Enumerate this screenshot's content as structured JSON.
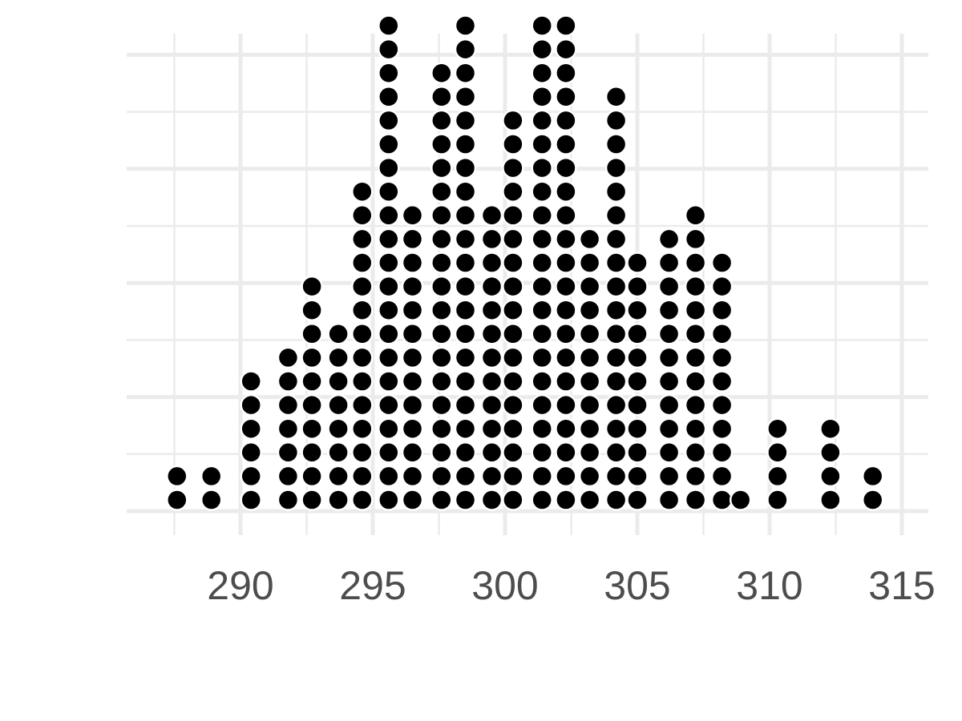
{
  "chart_data": {
    "type": "dotplot",
    "title": "",
    "xlabel": "",
    "ylabel": "",
    "x_ticks": [
      "290",
      "295",
      "300",
      "305",
      "310",
      "315"
    ],
    "x_tick_values": [
      290,
      295,
      300,
      305,
      310,
      315
    ],
    "xlim": [
      287.3,
      316.0
    ],
    "y_axis_labels_shown": false,
    "grid": true,
    "dot_color": "#000000",
    "bins": [
      {
        "x": 287.6,
        "count": 2
      },
      {
        "x": 288.9,
        "count": 2
      },
      {
        "x": 290.4,
        "count": 6
      },
      {
        "x": 291.8,
        "count": 7
      },
      {
        "x": 292.7,
        "count": 10
      },
      {
        "x": 293.7,
        "count": 8
      },
      {
        "x": 294.6,
        "count": 14
      },
      {
        "x": 295.6,
        "count": 21
      },
      {
        "x": 296.5,
        "count": 13
      },
      {
        "x": 297.6,
        "count": 19
      },
      {
        "x": 298.5,
        "count": 21
      },
      {
        "x": 299.5,
        "count": 13
      },
      {
        "x": 300.3,
        "count": 17
      },
      {
        "x": 301.4,
        "count": 21
      },
      {
        "x": 302.3,
        "count": 21
      },
      {
        "x": 303.2,
        "count": 12
      },
      {
        "x": 304.2,
        "count": 18
      },
      {
        "x": 305.0,
        "count": 11
      },
      {
        "x": 306.2,
        "count": 12
      },
      {
        "x": 307.2,
        "count": 13
      },
      {
        "x": 308.2,
        "count": 11
      },
      {
        "x": 308.9,
        "count": 1
      },
      {
        "x": 310.3,
        "count": 4
      },
      {
        "x": 312.3,
        "count": 4
      },
      {
        "x": 313.9,
        "count": 2
      }
    ]
  }
}
